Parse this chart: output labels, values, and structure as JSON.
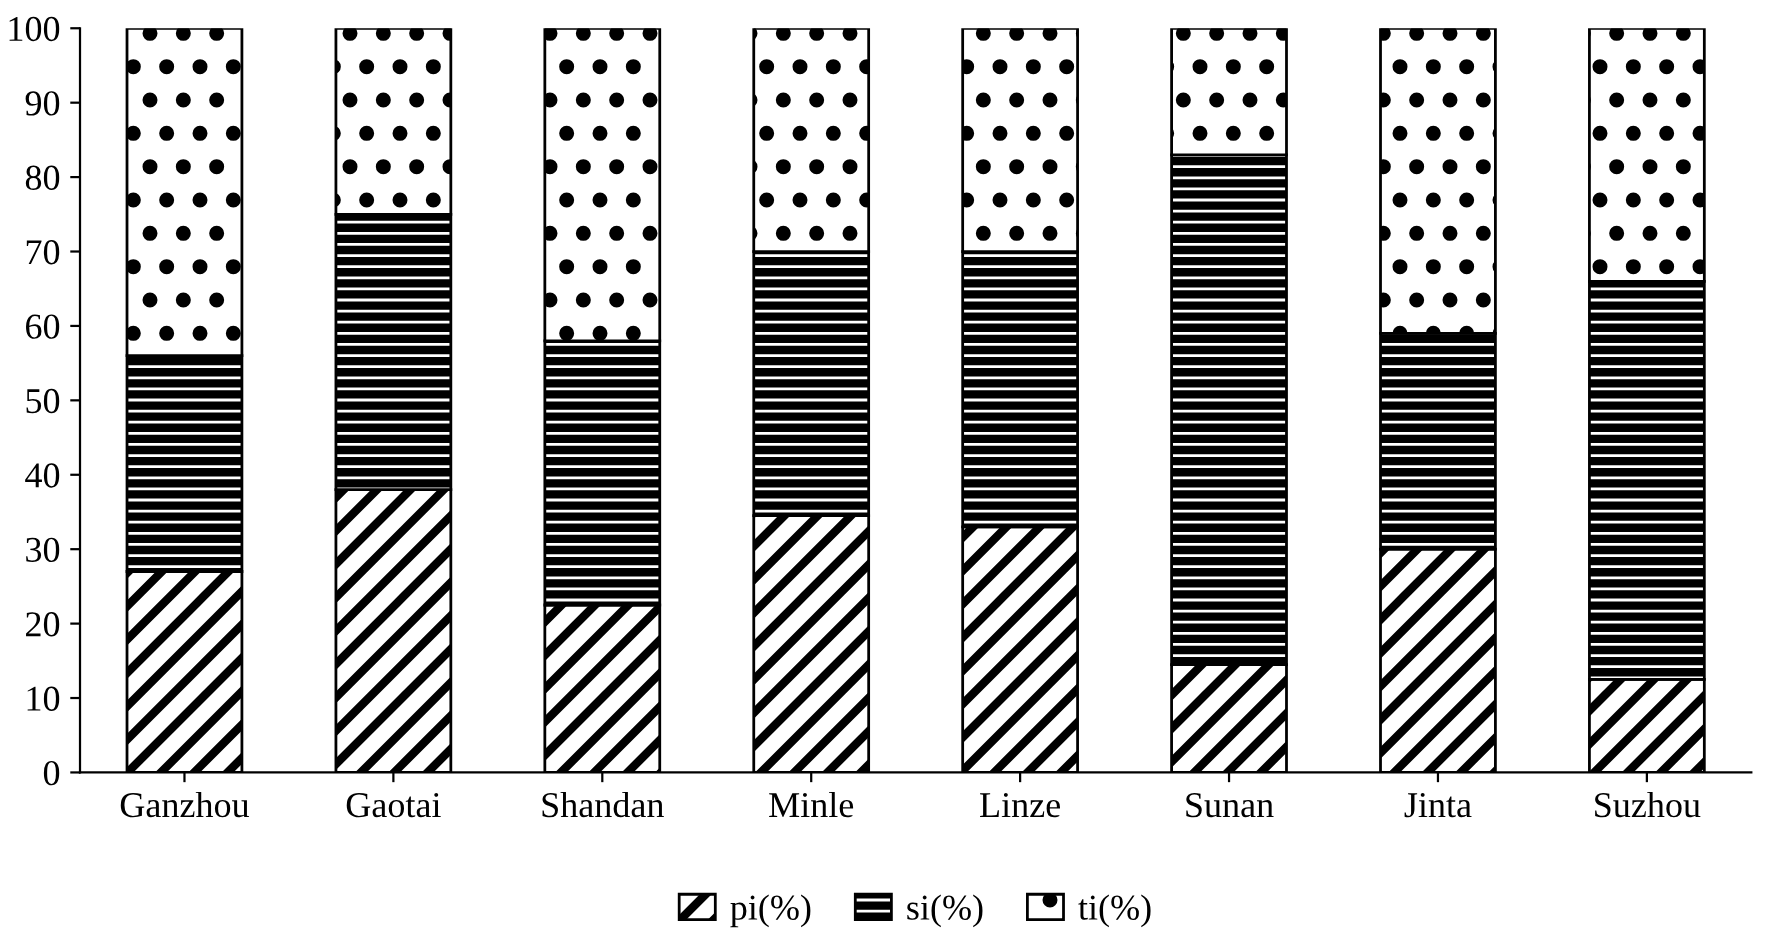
{
  "chart_data": {
    "type": "bar",
    "stacked": true,
    "categories": [
      "Ganzhou",
      "Gaotai",
      "Shandan",
      "Minle",
      "Linze",
      "Sunan",
      "Jinta",
      "Suzhou"
    ],
    "series": [
      {
        "name": "pi(%)",
        "color": "#000000",
        "values": [
          27,
          38,
          22.5,
          34.5,
          33,
          14.5,
          30,
          12.5
        ]
      },
      {
        "name": "si(%)",
        "color": "#000000",
        "values": [
          29,
          37,
          35.5,
          35.5,
          37,
          68.5,
          29,
          53.5
        ]
      },
      {
        "name": "ti(%)",
        "color": "#000000",
        "values": [
          44,
          25,
          42,
          30,
          30,
          17,
          41,
          34
        ]
      }
    ],
    "ylim": [
      0,
      100
    ],
    "yticks": [
      0,
      10,
      20,
      30,
      40,
      50,
      60,
      70,
      80,
      90,
      100
    ],
    "grid": false,
    "legend": "bottom"
  }
}
